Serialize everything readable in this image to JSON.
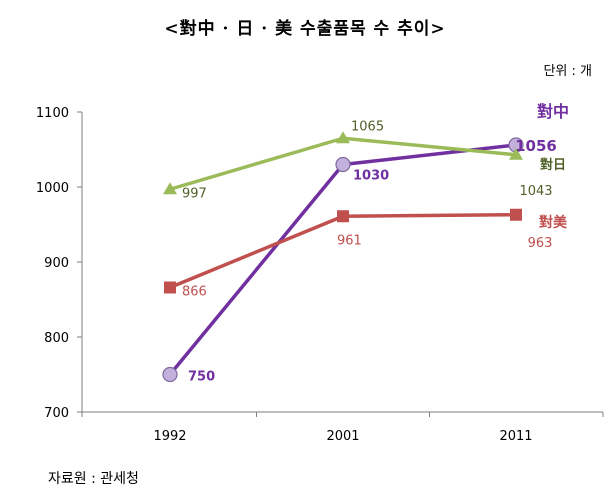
{
  "header": {
    "title": "<對中 · 日 · 美 수출품목 수 추이>",
    "unit": "단위 : 개"
  },
  "footer": {
    "source": "자료원 : 관세청"
  },
  "chart_data": {
    "type": "line",
    "categories": [
      "1992",
      "2001",
      "2011"
    ],
    "ylim": [
      700,
      1100
    ],
    "yticks": [
      700,
      800,
      900,
      1000,
      1100
    ],
    "grid": false,
    "legend": "right",
    "series": [
      {
        "name": "對中",
        "values": [
          750,
          1030,
          1056
        ],
        "color": "#7030a0",
        "marker": "circle",
        "labels": [
          "750",
          "1030",
          "1056"
        ]
      },
      {
        "name": "對日",
        "values": [
          997,
          1065,
          1043
        ],
        "color": "#9bbb59",
        "marker": "triangle",
        "labels": [
          "997",
          "1065",
          "1043"
        ]
      },
      {
        "name": "對美",
        "values": [
          866,
          961,
          963
        ],
        "color": "#c0504d",
        "marker": "square",
        "labels": [
          "866",
          "961",
          "963"
        ]
      }
    ]
  }
}
